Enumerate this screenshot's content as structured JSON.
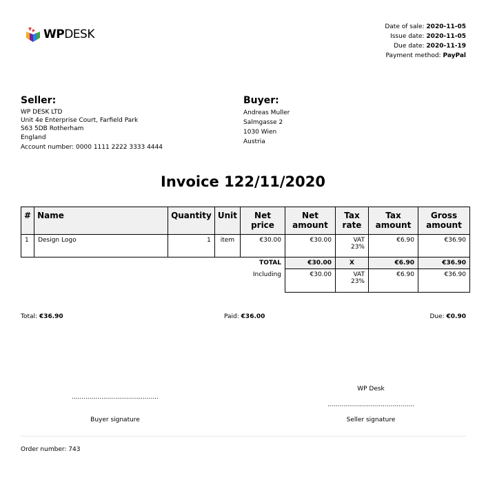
{
  "logo": {
    "text_bold": "WP",
    "text_light": "DESK"
  },
  "meta": [
    {
      "label": "Date of sale:",
      "value": "2020-11-05"
    },
    {
      "label": "Issue date:",
      "value": "2020-11-05"
    },
    {
      "label": "Due date:",
      "value": "2020-11-19"
    },
    {
      "label": "Payment method:",
      "value": "PayPal"
    }
  ],
  "seller": {
    "heading": "Seller:",
    "lines": [
      "WP DESK LTD",
      "Unit 4e Enterprise Court, Farfield Park",
      "S63 5DB Rotherham",
      "England",
      "Account number: 0000 1111 2222 3333 4444"
    ]
  },
  "buyer": {
    "heading": "Buyer:",
    "lines": [
      "Andreas Muller",
      "Salmgasse 2",
      "1030 Wien",
      "Austria"
    ]
  },
  "title": "Invoice 122/11/2020",
  "table": {
    "headers": [
      "#",
      "Name",
      "Quantity",
      "Unit",
      "Net price",
      "Net amount",
      "Tax rate",
      "Tax amount",
      "Gross amount"
    ],
    "rows": [
      [
        "1",
        "Design Logo",
        "1",
        "item",
        "€30.00",
        "€30.00",
        "VAT 23%",
        "€6.90",
        "€36.90"
      ]
    ],
    "total": {
      "label": "TOTAL",
      "net": "€30.00",
      "rate": "X",
      "tax": "€6.90",
      "gross": "€36.90"
    },
    "including": {
      "label": "Including",
      "net": "€30.00",
      "rate": "VAT 23%",
      "tax": "€6.90",
      "gross": "€36.90"
    }
  },
  "summary": {
    "total_label": "Total:",
    "total": "€36.90",
    "paid_label": "Paid:",
    "paid": "€36.00",
    "due_label": "Due:",
    "due": "€0.90"
  },
  "signatures": {
    "seller_name": "WP Desk",
    "dots": "............................................",
    "buyer": "Buyer signature",
    "seller": "Seller signature"
  },
  "order": "Order number: 743"
}
